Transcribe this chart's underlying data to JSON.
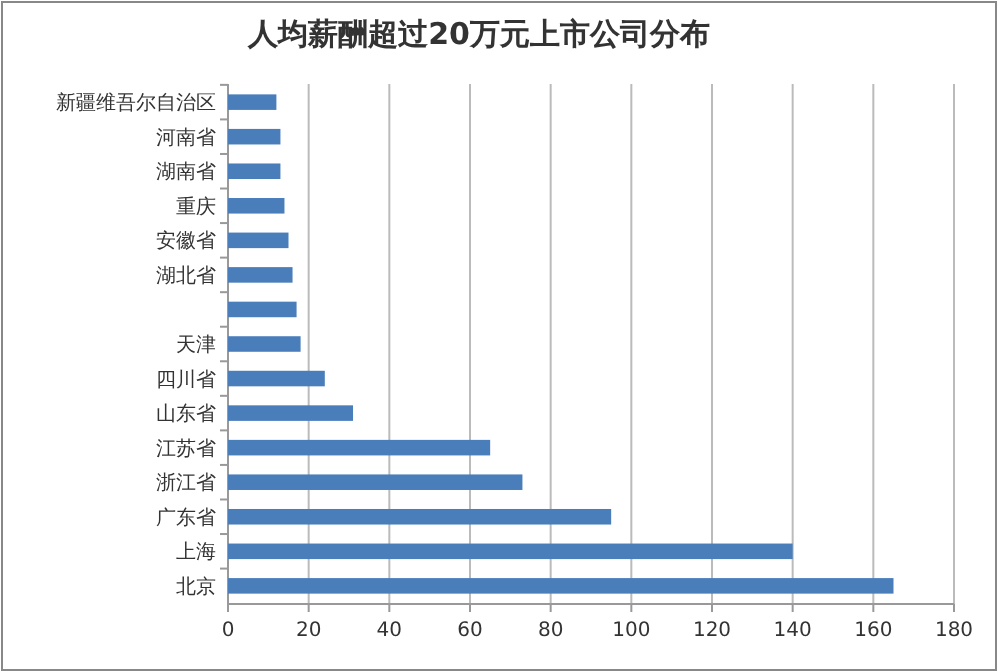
{
  "chart_data": {
    "type": "bar",
    "orientation": "horizontal",
    "title": "人均薪酬超过20万元上市公司分布",
    "categories": [
      "新疆维吾尔自治区",
      "河南省",
      "湖南省",
      "重庆",
      "安徽省",
      "湖北省",
      null,
      "天津",
      "四川省",
      "山东省",
      "江苏省",
      "浙江省",
      "广东省",
      "上海",
      "北京"
    ],
    "values": [
      12,
      13,
      13,
      14,
      15,
      16,
      17,
      18,
      24,
      31,
      65,
      73,
      95,
      140,
      165
    ],
    "color": "#4a7ebb",
    "xlim": [
      0,
      180
    ],
    "xticks": [
      0,
      20,
      40,
      60,
      80,
      100,
      120,
      140,
      160,
      180
    ],
    "grid": "x"
  }
}
